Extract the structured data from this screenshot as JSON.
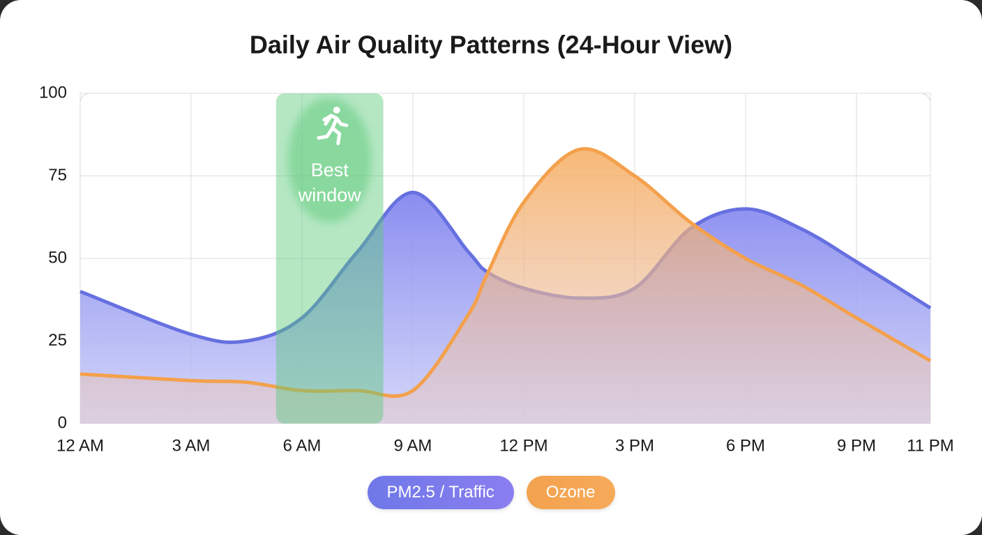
{
  "chart_data": {
    "type": "area",
    "title": "Daily Air Quality Patterns (24-Hour View)",
    "x": [
      0,
      3,
      4.5,
      6,
      7.5,
      9,
      10.5,
      11,
      12,
      13.5,
      15,
      16.5,
      18,
      19.5,
      21,
      23
    ],
    "series": [
      {
        "name": "PM2.5 / Traffic",
        "color": "#6670e0",
        "values": [
          40,
          27,
          25,
          32,
          52,
          70,
          52,
          46,
          41,
          38,
          41,
          59,
          65,
          59,
          49,
          35
        ]
      },
      {
        "name": "Ozone",
        "color": "#f4a04c",
        "values": [
          15,
          13,
          12.5,
          10,
          10,
          10,
          33,
          45,
          67,
          83,
          75,
          61,
          50,
          42,
          32,
          19
        ]
      }
    ],
    "xlim": [
      0,
      23
    ],
    "xticks": [
      {
        "value": 0,
        "label": "12 AM"
      },
      {
        "value": 3,
        "label": "3 AM"
      },
      {
        "value": 6,
        "label": "6 AM"
      },
      {
        "value": 9,
        "label": "9 AM"
      },
      {
        "value": 12,
        "label": "12 PM"
      },
      {
        "value": 15,
        "label": "3 PM"
      },
      {
        "value": 18,
        "label": "6 PM"
      },
      {
        "value": 21,
        "label": "9 PM"
      },
      {
        "value": 23,
        "label": "11 PM"
      }
    ],
    "ylim": [
      0,
      100
    ],
    "yticks": [
      0,
      25,
      50,
      75,
      100
    ],
    "grid": true,
    "highlight": {
      "start": 5.3,
      "end": 8.2,
      "label": "Best window",
      "color": "#5cc97a"
    }
  }
}
